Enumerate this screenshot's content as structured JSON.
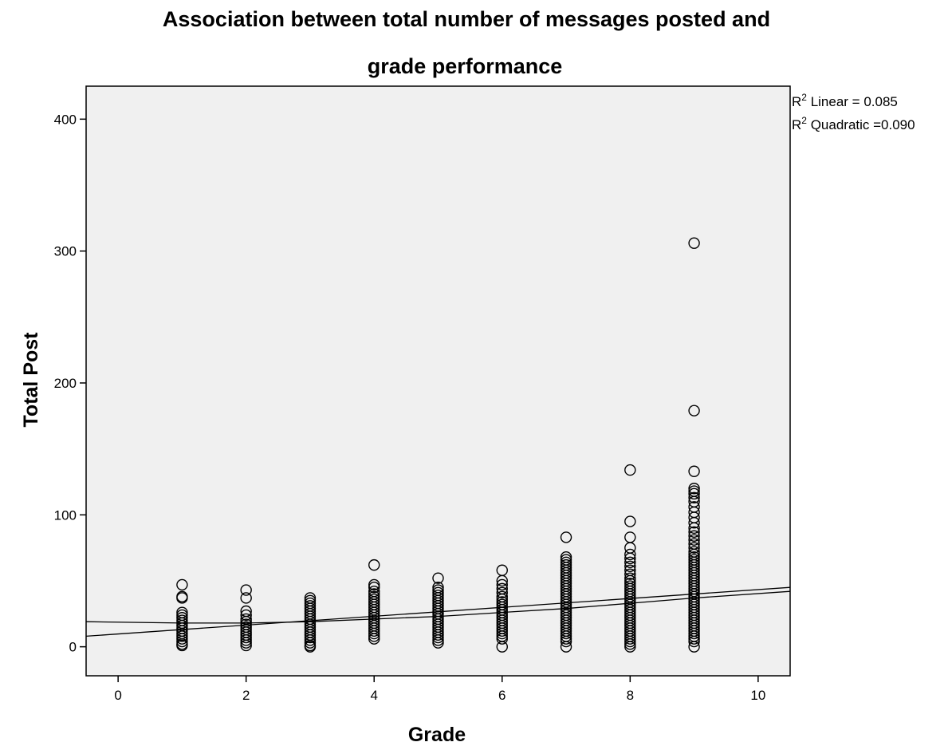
{
  "chart_data": {
    "type": "scatter",
    "title_line1": "Association between total number of messages posted and",
    "title_line2": "grade performance",
    "xlabel": "Grade",
    "ylabel": "Total Post",
    "xlim": [
      -0.5,
      10.5
    ],
    "ylim": [
      -22,
      425
    ],
    "xticks": [
      0,
      2,
      4,
      6,
      8,
      10
    ],
    "yticks": [
      0,
      100,
      200,
      300,
      400
    ],
    "grid": false,
    "annotations": [
      {
        "prefix": "R",
        "sup": "2",
        "text": " Linear = 0.085"
      },
      {
        "prefix": "R",
        "sup": "2",
        "text": " Quadratic =0.090"
      }
    ],
    "fit_lines": [
      {
        "name": "Linear",
        "points": [
          [
            -0.5,
            8
          ],
          [
            10.5,
            45
          ]
        ]
      },
      {
        "name": "Quadratic",
        "points": [
          [
            -0.5,
            19
          ],
          [
            1,
            18
          ],
          [
            2,
            18
          ],
          [
            3,
            19
          ],
          [
            4,
            21
          ],
          [
            5,
            23
          ],
          [
            6,
            26
          ],
          [
            7,
            29
          ],
          [
            8,
            33
          ],
          [
            9,
            37
          ],
          [
            10.5,
            42
          ]
        ]
      }
    ],
    "series": [
      {
        "x": 1,
        "y": [
          47,
          38,
          37,
          26,
          24,
          22,
          20,
          18,
          16,
          14,
          12,
          10,
          8,
          6,
          4,
          2,
          1
        ]
      },
      {
        "x": 2,
        "y": [
          43,
          37,
          27,
          24,
          21,
          19,
          17,
          15,
          13,
          11,
          9,
          7,
          5,
          3,
          1
        ]
      },
      {
        "x": 3,
        "y": [
          37,
          35,
          33,
          31,
          29,
          27,
          25,
          23,
          21,
          19,
          17,
          15,
          13,
          11,
          9,
          7,
          5,
          3,
          1,
          0
        ]
      },
      {
        "x": 4,
        "y": [
          62,
          47,
          45,
          42,
          40,
          38,
          36,
          34,
          32,
          30,
          28,
          26,
          24,
          22,
          20,
          18,
          16,
          14,
          12,
          10,
          8,
          6
        ]
      },
      {
        "x": 5,
        "y": [
          52,
          45,
          43,
          41,
          39,
          37,
          35,
          33,
          31,
          29,
          27,
          25,
          23,
          21,
          19,
          17,
          15,
          13,
          11,
          9,
          7,
          5,
          3
        ]
      },
      {
        "x": 6,
        "y": [
          58,
          50,
          47,
          44,
          41,
          38,
          36,
          34,
          32,
          30,
          28,
          26,
          24,
          22,
          20,
          18,
          16,
          14,
          12,
          10,
          8,
          6,
          0
        ]
      },
      {
        "x": 7,
        "y": [
          83,
          68,
          66,
          64,
          62,
          60,
          58,
          56,
          54,
          52,
          50,
          48,
          46,
          44,
          42,
          40,
          38,
          36,
          34,
          32,
          30,
          28,
          26,
          24,
          22,
          20,
          18,
          16,
          14,
          12,
          10,
          8,
          6,
          4,
          0
        ]
      },
      {
        "x": 8,
        "y": [
          134,
          95,
          83,
          75,
          70,
          67,
          64,
          61,
          58,
          55,
          52,
          50,
          48,
          46,
          44,
          42,
          40,
          38,
          36,
          34,
          32,
          30,
          28,
          26,
          24,
          22,
          20,
          18,
          16,
          14,
          12,
          10,
          8,
          6,
          4,
          2,
          0
        ]
      },
      {
        "x": 9,
        "y": [
          306,
          179,
          133,
          120,
          118,
          116,
          113,
          110,
          106,
          102,
          98,
          94,
          90,
          87,
          84,
          81,
          78,
          75,
          72,
          70,
          68,
          66,
          64,
          62,
          60,
          58,
          56,
          54,
          52,
          50,
          48,
          46,
          44,
          42,
          40,
          38,
          36,
          34,
          32,
          30,
          28,
          26,
          24,
          22,
          20,
          18,
          16,
          14,
          12,
          10,
          8,
          6,
          4,
          0
        ]
      }
    ]
  }
}
